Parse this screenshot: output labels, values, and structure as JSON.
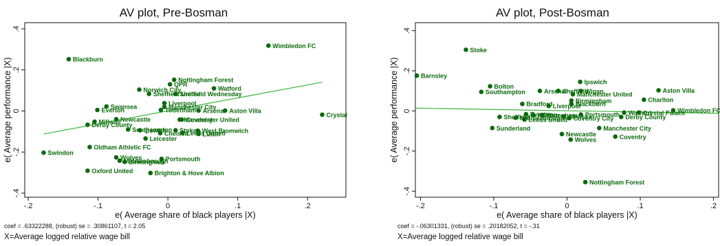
{
  "chart_data": [
    {
      "type": "scatter",
      "title": "AV plot, Pre-Bosman",
      "xlabel": "e( Average share of black players |X)",
      "ylabel": "e( Average performance |X)",
      "xlim": [
        -0.205,
        0.255
      ],
      "ylim": [
        -0.42,
        0.43
      ],
      "xticks": [
        -0.2,
        -0.1,
        0,
        0.1,
        0.2
      ],
      "xticklabels": [
        "-.2",
        "-.1",
        "0",
        ".1",
        ".2"
      ],
      "yticks": [
        -0.4,
        -0.2,
        0,
        0.2,
        0.4
      ],
      "yticklabels": [
        "-.4",
        "-.2",
        "0",
        ".2",
        ".4"
      ],
      "fit_line": {
        "x": [
          -0.178,
          0.221
        ],
        "y": [
          -0.112,
          0.14
        ]
      },
      "note": "coef = .63322288, (robust) se = .30861107, t = 2.05",
      "xnote": "X=Average logged relative wage bill",
      "points": [
        {
          "x": 0.144,
          "y": 0.318,
          "label": "Wimbledon FC"
        },
        {
          "x": -0.142,
          "y": 0.252,
          "label": "Blackburn"
        },
        {
          "x": 0.009,
          "y": 0.152,
          "label": "Nottingham Forest"
        },
        {
          "x": 0.003,
          "y": 0.13,
          "label": "QPR"
        },
        {
          "x": 0.066,
          "y": 0.11,
          "label": "Watford"
        },
        {
          "x": -0.041,
          "y": 0.104,
          "label": "Norwich City"
        },
        {
          "x": -0.027,
          "y": 0.083,
          "label": "Sheffield United"
        },
        {
          "x": 0.011,
          "y": 0.083,
          "label": "Sheffield Wednesday"
        },
        {
          "x": -0.005,
          "y": 0.038,
          "label": "Liverpool"
        },
        {
          "x": -0.088,
          "y": 0.022,
          "label": "Swansea"
        },
        {
          "x": -0.005,
          "y": 0.02,
          "label": "Manchester City"
        },
        {
          "x": -0.101,
          "y": 0.005,
          "label": "Everton"
        },
        {
          "x": -0.01,
          "y": 0.005,
          "label": "Tottenham"
        },
        {
          "x": 0.082,
          "y": 0.002,
          "label": "Aston Villa"
        },
        {
          "x": 0.044,
          "y": 0.002,
          "label": "Arsenal"
        },
        {
          "x": 0.221,
          "y": -0.018,
          "label": "Crystal Palace"
        },
        {
          "x": -0.074,
          "y": -0.04,
          "label": "Newcastle"
        },
        {
          "x": 0.02,
          "y": -0.042,
          "label": "Coventry"
        },
        {
          "x": -0.105,
          "y": -0.052,
          "label": "Millwall"
        },
        {
          "x": 0.017,
          "y": -0.042,
          "label": "Manchester United"
        },
        {
          "x": -0.115,
          "y": -0.067,
          "label": "Derby County"
        },
        {
          "x": -0.057,
          "y": -0.09,
          "label": "Southampton"
        },
        {
          "x": -0.04,
          "y": -0.094,
          "label": "Ipswich"
        },
        {
          "x": 0.011,
          "y": -0.094,
          "label": "Stoke"
        },
        {
          "x": 0.043,
          "y": -0.096,
          "label": "West Bromwich"
        },
        {
          "x": -0.011,
          "y": -0.108,
          "label": "Chelsea"
        },
        {
          "x": 0.021,
          "y": -0.107,
          "label": "Leeds United"
        },
        {
          "x": 0.044,
          "y": -0.112,
          "label": "Luton"
        },
        {
          "x": -0.032,
          "y": -0.134,
          "label": "Leicester"
        },
        {
          "x": -0.112,
          "y": -0.176,
          "label": "Oldham Athletic FC"
        },
        {
          "x": -0.178,
          "y": -0.203,
          "label": "Swindon"
        },
        {
          "x": -0.074,
          "y": -0.226,
          "label": "Wolves"
        },
        {
          "x": -0.009,
          "y": -0.233,
          "label": "Portsmouth"
        },
        {
          "x": -0.069,
          "y": -0.242,
          "label": "Middlesbrough"
        },
        {
          "x": -0.062,
          "y": -0.248,
          "label": "Birmingham"
        },
        {
          "x": -0.115,
          "y": -0.291,
          "label": "Oxford United"
        },
        {
          "x": -0.025,
          "y": -0.302,
          "label": "Brighton & Hove Albion"
        }
      ]
    },
    {
      "type": "scatter",
      "title": "AV plot, Post-Bosman",
      "xlabel": "e( Average share of black players |X)",
      "ylabel": "e( Average performance |X)",
      "xlim": [
        -0.207,
        0.207
      ],
      "ylim": [
        -0.43,
        0.44
      ],
      "xticks": [
        -0.2,
        -0.1,
        0,
        0.1,
        0.2
      ],
      "xticklabels": [
        "-.2",
        "-.1",
        "0",
        ".1",
        ".2"
      ],
      "yticks": [
        -0.4,
        -0.2,
        0,
        0.2,
        0.4
      ],
      "yticklabels": [
        "-.4",
        "-.2",
        "0",
        ".2",
        ".4"
      ],
      "fit_line": {
        "x": [
          -0.207,
          0.207
        ],
        "y": [
          0.014,
          -0.012
        ]
      },
      "note": "coef = -.06301331, (robust) se = .20182052, t = -.31",
      "xnote": "X=Average logged relative wage bill",
      "points": [
        {
          "x": -0.138,
          "y": 0.305,
          "label": "Stoke"
        },
        {
          "x": -0.205,
          "y": 0.176,
          "label": "Barnsley"
        },
        {
          "x": 0.018,
          "y": 0.145,
          "label": "Ipswich"
        },
        {
          "x": -0.105,
          "y": 0.123,
          "label": "Bolton"
        },
        {
          "x": 0.125,
          "y": 0.103,
          "label": "Aston Villa"
        },
        {
          "x": -0.037,
          "y": 0.1,
          "label": "Arsenal"
        },
        {
          "x": -0.012,
          "y": 0.1,
          "label": "Sheffield"
        },
        {
          "x": 0.019,
          "y": 0.1,
          "label": "Wigan"
        },
        {
          "x": -0.117,
          "y": 0.095,
          "label": "Southampton"
        },
        {
          "x": 0.008,
          "y": 0.083,
          "label": "Manchester United"
        },
        {
          "x": 0.105,
          "y": 0.056,
          "label": "Charlton"
        },
        {
          "x": 0.006,
          "y": 0.052,
          "label": "Birmingham"
        },
        {
          "x": -0.061,
          "y": 0.035,
          "label": "Bradford"
        },
        {
          "x": 0.006,
          "y": 0.035,
          "label": "Blackburn"
        },
        {
          "x": -0.025,
          "y": 0.025,
          "label": "Liverpool"
        },
        {
          "x": 0.145,
          "y": 0.003,
          "label": "Wimbledon FC"
        },
        {
          "x": 0.098,
          "y": -0.008,
          "label": "Crystal Palace"
        },
        {
          "x": 0.078,
          "y": -0.008,
          "label": "Watford"
        },
        {
          "x": 0.019,
          "y": -0.018,
          "label": "Portsmouth"
        },
        {
          "x": -0.056,
          "y": -0.016,
          "label": "Everton"
        },
        {
          "x": -0.046,
          "y": -0.02,
          "label": "Fulham"
        },
        {
          "x": -0.034,
          "y": -0.02,
          "label": "Tottenham"
        },
        {
          "x": -0.004,
          "y": -0.028,
          "label": "Chelsea"
        },
        {
          "x": -0.092,
          "y": -0.03,
          "label": "Sheffield"
        },
        {
          "x": 0.074,
          "y": -0.03,
          "label": "Derby County"
        },
        {
          "x": -0.07,
          "y": -0.034,
          "label": "Middlesbrough"
        },
        {
          "x": 0.003,
          "y": -0.036,
          "label": "Coventry City"
        },
        {
          "x": -0.058,
          "y": -0.043,
          "label": "Leeds United"
        },
        {
          "x": -0.102,
          "y": -0.085,
          "label": "Sunderland"
        },
        {
          "x": 0.044,
          "y": -0.085,
          "label": "Manchester City"
        },
        {
          "x": 0.066,
          "y": -0.128,
          "label": "Coventry"
        },
        {
          "x": -0.007,
          "y": -0.115,
          "label": "Newcastle"
        },
        {
          "x": 0.005,
          "y": -0.143,
          "label": "Wolves"
        },
        {
          "x": 0.025,
          "y": -0.355,
          "label": "Nottingham Forest"
        }
      ]
    }
  ]
}
